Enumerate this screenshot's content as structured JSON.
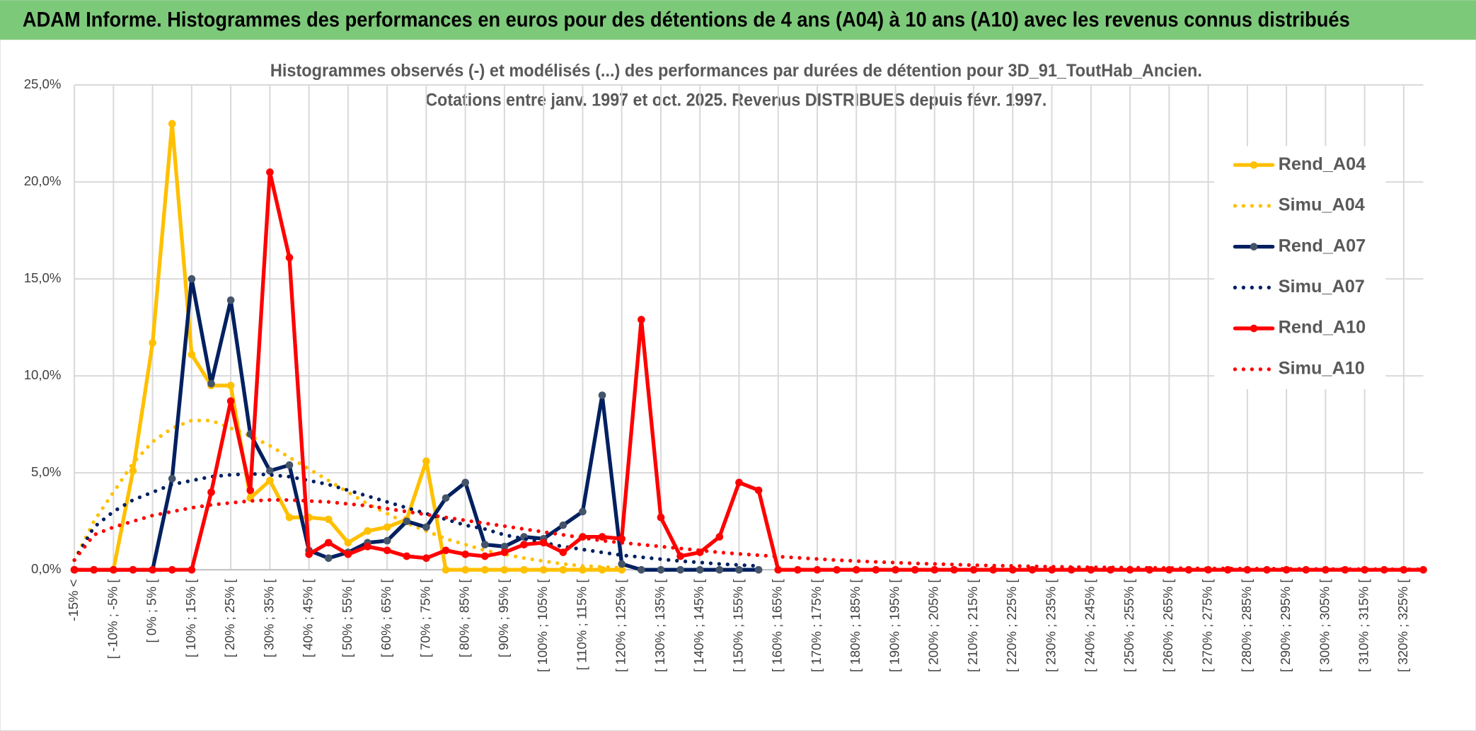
{
  "page_title": "ADAM Informe. Histogrammes des performances en euros pour des détentions de 4 ans (A04) à 10 ans (A10) avec les revenus connus distribués",
  "chart_data": {
    "type": "line",
    "title": "Histogrammes observés (-) et modélisés (...) des performances par durées de détention pour 3D_91_ToutHab_Ancien.",
    "subtitle": "Cotations entre janv. 1997 et oct. 2025. Revenus DISTRIBUES depuis févr. 1997.",
    "categories": [
      "-15% <",
      null,
      "[ -10% ; -5% [",
      null,
      "[ 0% ; 5% [",
      null,
      "[ 10% ; 15% [",
      null,
      "[ 20% ; 25% [",
      null,
      "[ 30% ; 35% [",
      null,
      "[ 40% ; 45% [",
      null,
      "[ 50% ; 55% [",
      null,
      "[ 60% ; 65% [",
      null,
      "[ 70% ; 75% [",
      null,
      "[ 80% ; 85% [",
      null,
      "[ 90% ; 95% [",
      null,
      "[ 100% ; 105% [",
      null,
      "[ 110% ; 115% [",
      null,
      "[ 120% ; 125% [",
      null,
      "[ 130% ; 135% [",
      null,
      "[ 140% ; 145% [",
      null,
      "[ 150% ; 155% [",
      null,
      "[ 160% ; 165% [",
      null,
      "[ 170% ; 175% [",
      null,
      "[ 180% ; 185% [",
      null,
      "[ 190% ; 195% [",
      null,
      "[ 200% ; 205% [",
      null,
      "[ 210% ; 215% [",
      null,
      "[ 220% ; 225% [",
      null,
      "[ 230% ; 235% [",
      null,
      "[ 240% ; 245% [",
      null,
      "[ 250% ; 255% [",
      null,
      "[ 260% ; 265% [",
      null,
      "[ 270% ; 275% [",
      null,
      "[ 280% ; 285% [",
      null,
      "[ 290% ; 295% [",
      null,
      "[ 300% ; 305% [",
      null,
      "[ 310% ; 315% [",
      null,
      "[ 320% ; 325% [",
      null
    ],
    "series": [
      {
        "name": "Rend_A04",
        "color": "#FFC000",
        "dash": "solid",
        "markers": true,
        "values": [
          0,
          0,
          0,
          5.1,
          11.7,
          23,
          11.1,
          9.5,
          9.5,
          3.7,
          4.6,
          2.7,
          2.7,
          2.6,
          1.4,
          2.0,
          2.2,
          2.6,
          5.6,
          0,
          0,
          0,
          0,
          0,
          0,
          0,
          0,
          0,
          0,
          null,
          null,
          null,
          null,
          null,
          null,
          null,
          null,
          null,
          null,
          null,
          null,
          null,
          null,
          null,
          null,
          null,
          null,
          null,
          null,
          null,
          null,
          null,
          null,
          null,
          null,
          null,
          null,
          null,
          null,
          null,
          null,
          null,
          null,
          null,
          null,
          null,
          null,
          null,
          null,
          null
        ]
      },
      {
        "name": "Simu_A04",
        "color": "#FFC000",
        "dash": "dotted",
        "markers": false,
        "values": [
          0.5,
          2.5,
          4.0,
          5.5,
          6.6,
          7.3,
          7.7,
          7.7,
          7.3,
          6.9,
          6.4,
          5.8,
          5.2,
          4.6,
          4.0,
          3.4,
          2.9,
          2.4,
          2.0,
          1.6,
          1.3,
          1.0,
          0.8,
          0.6,
          0.45,
          0.3,
          0.2,
          0.15,
          0.1,
          null,
          null,
          null,
          null,
          null,
          null,
          null,
          null,
          null,
          null,
          null,
          null,
          null,
          null,
          null,
          null,
          null,
          null,
          null,
          null,
          null,
          null,
          null,
          null,
          null,
          null,
          null,
          null,
          null,
          null,
          null,
          null,
          null,
          null,
          null,
          null,
          null,
          null,
          null,
          null,
          null
        ]
      },
      {
        "name": "Rend_A07",
        "color": "#002060",
        "dash": "solid",
        "markers": true,
        "values": [
          0,
          0,
          0,
          0,
          0,
          4.7,
          15,
          9.6,
          13.9,
          7.0,
          5.1,
          5.4,
          1.0,
          0.6,
          0.9,
          1.4,
          1.5,
          2.5,
          2.2,
          3.7,
          4.5,
          1.3,
          1.2,
          1.7,
          1.6,
          2.3,
          3.0,
          9.0,
          0.3,
          0,
          0,
          0,
          0,
          0,
          0,
          0,
          null,
          null,
          null,
          null,
          null,
          null,
          null,
          null,
          null,
          null,
          null,
          null,
          null,
          null,
          null,
          null,
          null,
          null,
          null,
          null,
          null,
          null,
          null,
          null,
          null,
          null,
          null,
          null,
          null,
          null,
          null,
          null,
          null,
          null
        ]
      },
      {
        "name": "Simu_A07",
        "color": "#002060",
        "dash": "dotted",
        "markers": false,
        "values": [
          0.5,
          2.2,
          3.0,
          3.6,
          4.0,
          4.4,
          4.6,
          4.8,
          4.9,
          4.95,
          4.9,
          4.8,
          4.6,
          4.4,
          4.1,
          3.8,
          3.5,
          3.2,
          2.9,
          2.6,
          2.3,
          2.1,
          1.8,
          1.6,
          1.4,
          1.2,
          1.05,
          0.9,
          0.75,
          0.65,
          0.55,
          0.45,
          0.38,
          0.3,
          0.25,
          0.2,
          null,
          null,
          null,
          null,
          null,
          null,
          null,
          null,
          null,
          null,
          null,
          null,
          null,
          null,
          null,
          null,
          null,
          null,
          null,
          null,
          null,
          null,
          null,
          null,
          null,
          null,
          null,
          null,
          null,
          null,
          null,
          null,
          null,
          null
        ]
      },
      {
        "name": "Rend_A10",
        "color": "#FF0000",
        "dash": "solid",
        "markers": true,
        "values": [
          0,
          0,
          0,
          0,
          0,
          0,
          0,
          4.0,
          8.7,
          4.1,
          20.5,
          16.1,
          0.8,
          1.4,
          0.8,
          1.2,
          1.0,
          0.7,
          0.6,
          1.0,
          0.8,
          0.7,
          0.9,
          1.3,
          1.4,
          0.9,
          1.7,
          1.7,
          1.6,
          12.9,
          2.7,
          0.7,
          0.9,
          1.7,
          4.5,
          4.1,
          0,
          0,
          0,
          0,
          0,
          0,
          0,
          0,
          0,
          0,
          0,
          0,
          0,
          0,
          0,
          0,
          0,
          0,
          0,
          0,
          0,
          0,
          0,
          0,
          0,
          0,
          0,
          0,
          0,
          0,
          0,
          0,
          0,
          0
        ]
      },
      {
        "name": "Simu_A10",
        "color": "#FF0000",
        "dash": "dotted",
        "markers": false,
        "values": [
          0.5,
          1.8,
          2.2,
          2.5,
          2.8,
          3.0,
          3.2,
          3.35,
          3.45,
          3.55,
          3.6,
          3.6,
          3.55,
          3.5,
          3.4,
          3.3,
          3.15,
          3.0,
          2.85,
          2.7,
          2.55,
          2.4,
          2.25,
          2.1,
          1.95,
          1.8,
          1.65,
          1.5,
          1.4,
          1.3,
          1.2,
          1.1,
          1.0,
          0.9,
          0.82,
          0.75,
          0.68,
          0.62,
          0.56,
          0.5,
          0.45,
          0.41,
          0.37,
          0.33,
          0.3,
          0.27,
          0.24,
          0.22,
          0.2,
          0.18,
          0.16,
          0.14,
          0.13,
          0.12,
          0.11,
          0.1,
          0.09,
          0.08,
          0.07,
          0.07,
          0.06,
          0.06,
          0.05,
          0.05,
          0.04,
          0.04,
          0.04,
          0.03,
          0.03,
          0.03
        ]
      }
    ],
    "ylim": [
      0,
      25
    ],
    "yticks": [
      {
        "value": 0,
        "label": "0,0%"
      },
      {
        "value": 5,
        "label": "5,0%"
      },
      {
        "value": 10,
        "label": "10,0%"
      },
      {
        "value": 15,
        "label": "15,0%"
      },
      {
        "value": 20,
        "label": "20,0%"
      },
      {
        "value": 25,
        "label": "25,0%"
      }
    ],
    "grid": true,
    "legend": "right"
  }
}
